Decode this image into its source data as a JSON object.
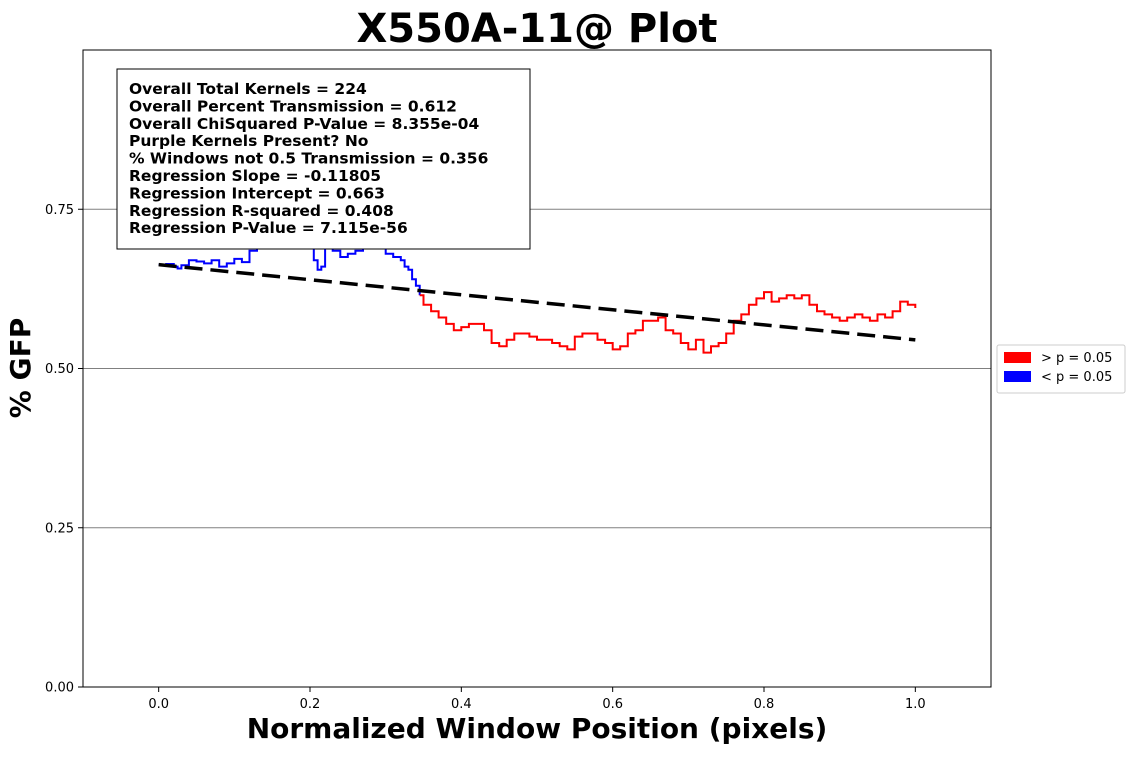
{
  "chart_data": {
    "type": "line",
    "title": "X550A-11@ Plot",
    "xlabel": "Normalized Window Position (pixels)",
    "ylabel": "% GFP",
    "xlim": [
      -0.1,
      1.1
    ],
    "ylim": [
      0.0,
      1.0
    ],
    "xticks": [
      0.0,
      0.2,
      0.4,
      0.6,
      0.8,
      1.0
    ],
    "xtick_labels": [
      "0.0",
      "0.2",
      "0.4",
      "0.6",
      "0.8",
      "1.0"
    ],
    "yticks": [
      0.0,
      0.25,
      0.5,
      0.75
    ],
    "ytick_labels": [
      "0.00",
      "0.25",
      "0.50",
      "0.75"
    ],
    "grid": "horizontal",
    "legend_placement": "outside-right",
    "legend": [
      {
        "label": "> p = 0.05",
        "color": "#ff0000"
      },
      {
        "label": "< p = 0.05",
        "color": "#0000ff"
      }
    ],
    "stats": [
      "Overall Total Kernels = 224",
      "Overall Percent Transmission = 0.612",
      "Overall ChiSquared P-Value = 8.355e-04",
      "Purple Kernels Present? No",
      "% Windows not 0.5 Transmission = 0.356",
      "Regression Slope = -0.11805",
      "Regression Intercept = 0.663",
      "Regression R-squared = 0.408",
      "Regression P-Value = 7.115e-56"
    ],
    "regression": {
      "slope": -0.11805,
      "intercept": 0.663,
      "x_range": [
        0.0,
        1.0
      ],
      "color": "#000000",
      "style": "dashed"
    },
    "series": [
      {
        "color": "#0000ff",
        "points": [
          [
            0.0,
            0.663
          ],
          [
            0.01,
            0.664
          ],
          [
            0.02,
            0.66
          ],
          [
            0.025,
            0.657
          ],
          [
            0.03,
            0.662
          ],
          [
            0.04,
            0.67
          ],
          [
            0.05,
            0.668
          ],
          [
            0.06,
            0.665
          ],
          [
            0.07,
            0.67
          ],
          [
            0.08,
            0.66
          ],
          [
            0.09,
            0.665
          ],
          [
            0.1,
            0.672
          ],
          [
            0.11,
            0.667
          ],
          [
            0.12,
            0.685
          ],
          [
            0.13,
            0.69
          ],
          [
            0.14,
            0.71
          ],
          [
            0.15,
            0.705
          ],
          [
            0.16,
            0.73
          ],
          [
            0.17,
            0.72
          ],
          [
            0.18,
            0.715
          ],
          [
            0.19,
            0.7
          ],
          [
            0.2,
            0.695
          ],
          [
            0.205,
            0.67
          ],
          [
            0.21,
            0.655
          ],
          [
            0.215,
            0.66
          ],
          [
            0.22,
            0.69
          ],
          [
            0.23,
            0.685
          ],
          [
            0.24,
            0.675
          ],
          [
            0.25,
            0.68
          ],
          [
            0.26,
            0.685
          ],
          [
            0.27,
            0.69
          ],
          [
            0.28,
            0.7
          ],
          [
            0.29,
            0.69
          ],
          [
            0.3,
            0.68
          ],
          [
            0.31,
            0.675
          ],
          [
            0.32,
            0.67
          ],
          [
            0.325,
            0.66
          ],
          [
            0.33,
            0.655
          ],
          [
            0.335,
            0.64
          ],
          [
            0.34,
            0.63
          ],
          [
            0.345,
            0.615
          ]
        ]
      },
      {
        "color": "#ff0000",
        "points": [
          [
            0.345,
            0.615
          ],
          [
            0.35,
            0.6
          ],
          [
            0.36,
            0.59
          ],
          [
            0.37,
            0.58
          ],
          [
            0.38,
            0.57
          ],
          [
            0.39,
            0.56
          ],
          [
            0.4,
            0.565
          ],
          [
            0.41,
            0.57
          ],
          [
            0.42,
            0.57
          ],
          [
            0.43,
            0.56
          ],
          [
            0.44,
            0.54
          ],
          [
            0.45,
            0.535
          ],
          [
            0.46,
            0.545
          ],
          [
            0.47,
            0.555
          ],
          [
            0.48,
            0.555
          ],
          [
            0.49,
            0.55
          ],
          [
            0.5,
            0.545
          ],
          [
            0.51,
            0.545
          ],
          [
            0.52,
            0.54
          ],
          [
            0.53,
            0.535
          ],
          [
            0.54,
            0.53
          ],
          [
            0.55,
            0.55
          ],
          [
            0.56,
            0.555
          ],
          [
            0.57,
            0.555
          ],
          [
            0.58,
            0.545
          ],
          [
            0.59,
            0.54
          ],
          [
            0.6,
            0.53
          ],
          [
            0.61,
            0.535
          ],
          [
            0.62,
            0.555
          ],
          [
            0.63,
            0.56
          ],
          [
            0.64,
            0.575
          ],
          [
            0.65,
            0.575
          ],
          [
            0.66,
            0.58
          ],
          [
            0.67,
            0.56
          ],
          [
            0.68,
            0.555
          ],
          [
            0.69,
            0.54
          ],
          [
            0.7,
            0.53
          ],
          [
            0.71,
            0.545
          ],
          [
            0.72,
            0.525
          ],
          [
            0.73,
            0.535
          ],
          [
            0.74,
            0.54
          ],
          [
            0.75,
            0.555
          ],
          [
            0.76,
            0.575
          ],
          [
            0.77,
            0.585
          ],
          [
            0.78,
            0.6
          ],
          [
            0.79,
            0.61
          ],
          [
            0.8,
            0.62
          ],
          [
            0.81,
            0.605
          ],
          [
            0.82,
            0.61
          ],
          [
            0.83,
            0.615
          ],
          [
            0.84,
            0.61
          ],
          [
            0.85,
            0.615
          ],
          [
            0.86,
            0.6
          ],
          [
            0.87,
            0.59
          ],
          [
            0.88,
            0.585
          ],
          [
            0.89,
            0.58
          ],
          [
            0.9,
            0.575
          ],
          [
            0.91,
            0.58
          ],
          [
            0.92,
            0.585
          ],
          [
            0.93,
            0.58
          ],
          [
            0.94,
            0.575
          ],
          [
            0.95,
            0.585
          ],
          [
            0.96,
            0.58
          ],
          [
            0.97,
            0.59
          ],
          [
            0.98,
            0.605
          ],
          [
            0.99,
            0.6
          ],
          [
            1.0,
            0.595
          ]
        ]
      }
    ]
  }
}
